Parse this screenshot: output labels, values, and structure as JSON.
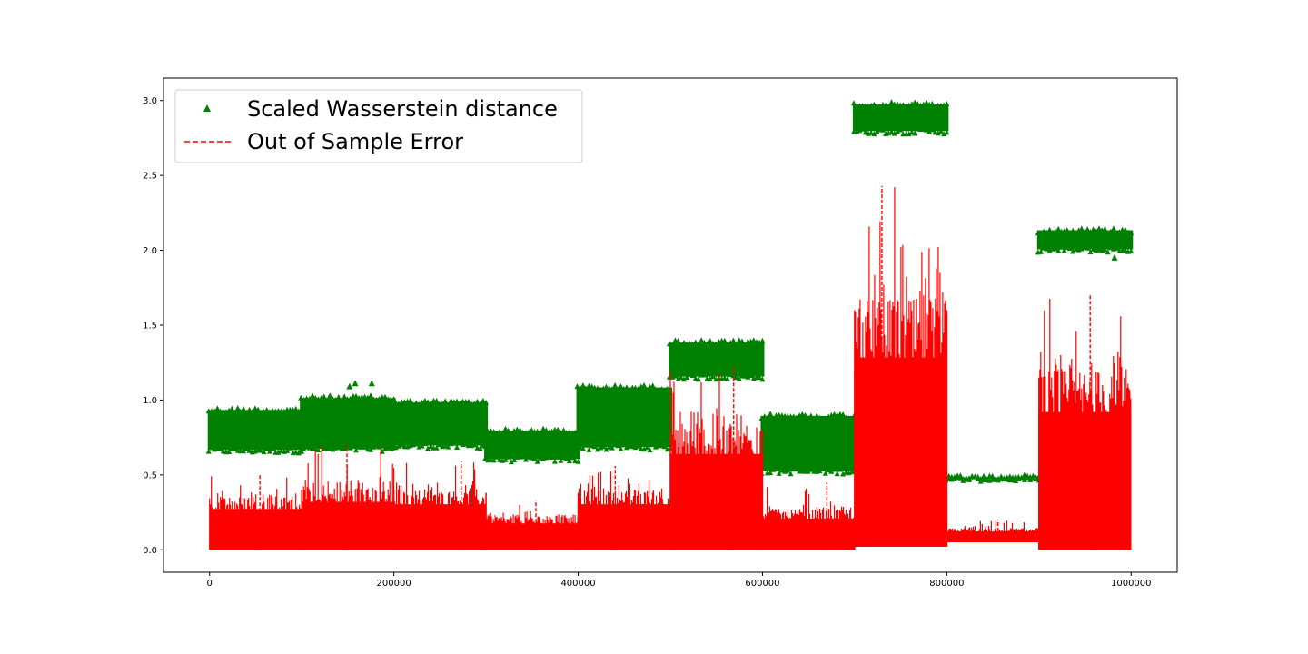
{
  "chart_data": {
    "type": "scatter",
    "title": "",
    "xlabel": "",
    "ylabel": "",
    "xlim": [
      -50000,
      1050000
    ],
    "ylim": [
      -0.15,
      3.15
    ],
    "xticks": [
      0,
      200000,
      400000,
      600000,
      800000,
      1000000
    ],
    "xtick_labels": [
      "0",
      "200000",
      "400000",
      "600000",
      "800000",
      "1000000"
    ],
    "yticks": [
      0.0,
      0.5,
      1.0,
      1.5,
      2.0,
      2.5,
      3.0
    ],
    "ytick_labels": [
      "0.0",
      "0.5",
      "1.0",
      "1.5",
      "2.0",
      "2.5",
      "3.0"
    ],
    "grid": false,
    "legend_position": "top-left",
    "series": [
      {
        "name": "Scaled Wasserstein distance",
        "style": "triangle-markers",
        "color": "#008000",
        "segments": [
          {
            "x_start": 0,
            "x_end": 100000,
            "low": 0.63,
            "high": 0.97
          },
          {
            "x_start": 100000,
            "x_end": 200000,
            "low": 0.64,
            "high": 1.05
          },
          {
            "x_start": 200000,
            "x_end": 300000,
            "low": 0.66,
            "high": 1.02
          },
          {
            "x_start": 300000,
            "x_end": 400000,
            "low": 0.57,
            "high": 0.83
          },
          {
            "x_start": 400000,
            "x_end": 500000,
            "low": 0.65,
            "high": 1.12
          },
          {
            "x_start": 500000,
            "x_end": 600000,
            "low": 1.12,
            "high": 1.42
          },
          {
            "x_start": 600000,
            "x_end": 700000,
            "low": 0.49,
            "high": 0.93
          },
          {
            "x_start": 700000,
            "x_end": 800000,
            "low": 2.76,
            "high": 3.01
          },
          {
            "x_start": 800000,
            "x_end": 900000,
            "low": 0.44,
            "high": 0.52
          },
          {
            "x_start": 900000,
            "x_end": 1000000,
            "low": 1.97,
            "high": 2.17
          }
        ],
        "outliers": [
          [
            152000,
            1.09
          ],
          [
            158000,
            1.11
          ],
          [
            176000,
            1.11
          ],
          [
            982000,
            1.95
          ]
        ]
      },
      {
        "name": "Out of Sample Error",
        "style": "dashed-line",
        "color": "#ff0000",
        "segments": [
          {
            "x_start": 0,
            "x_end": 100000,
            "low": 0.0,
            "typical": 0.34,
            "peak": 0.51
          },
          {
            "x_start": 100000,
            "x_end": 200000,
            "low": 0.0,
            "typical": 0.4,
            "peak": 0.7
          },
          {
            "x_start": 200000,
            "x_end": 300000,
            "low": 0.0,
            "typical": 0.38,
            "peak": 0.59
          },
          {
            "x_start": 300000,
            "x_end": 400000,
            "low": 0.0,
            "typical": 0.22,
            "peak": 0.33
          },
          {
            "x_start": 400000,
            "x_end": 500000,
            "low": 0.0,
            "typical": 0.38,
            "peak": 0.56
          },
          {
            "x_start": 500000,
            "x_end": 600000,
            "low": 0.0,
            "typical": 0.8,
            "peak": 1.22
          },
          {
            "x_start": 600000,
            "x_end": 700000,
            "low": 0.0,
            "typical": 0.26,
            "peak": 0.45
          },
          {
            "x_start": 700000,
            "x_end": 800000,
            "low": 0.02,
            "typical": 1.6,
            "peak": 2.43
          },
          {
            "x_start": 800000,
            "x_end": 900000,
            "low": 0.05,
            "typical": 0.14,
            "peak": 0.2
          },
          {
            "x_start": 900000,
            "x_end": 1000000,
            "low": 0.0,
            "typical": 1.15,
            "peak": 1.71
          }
        ]
      }
    ]
  }
}
